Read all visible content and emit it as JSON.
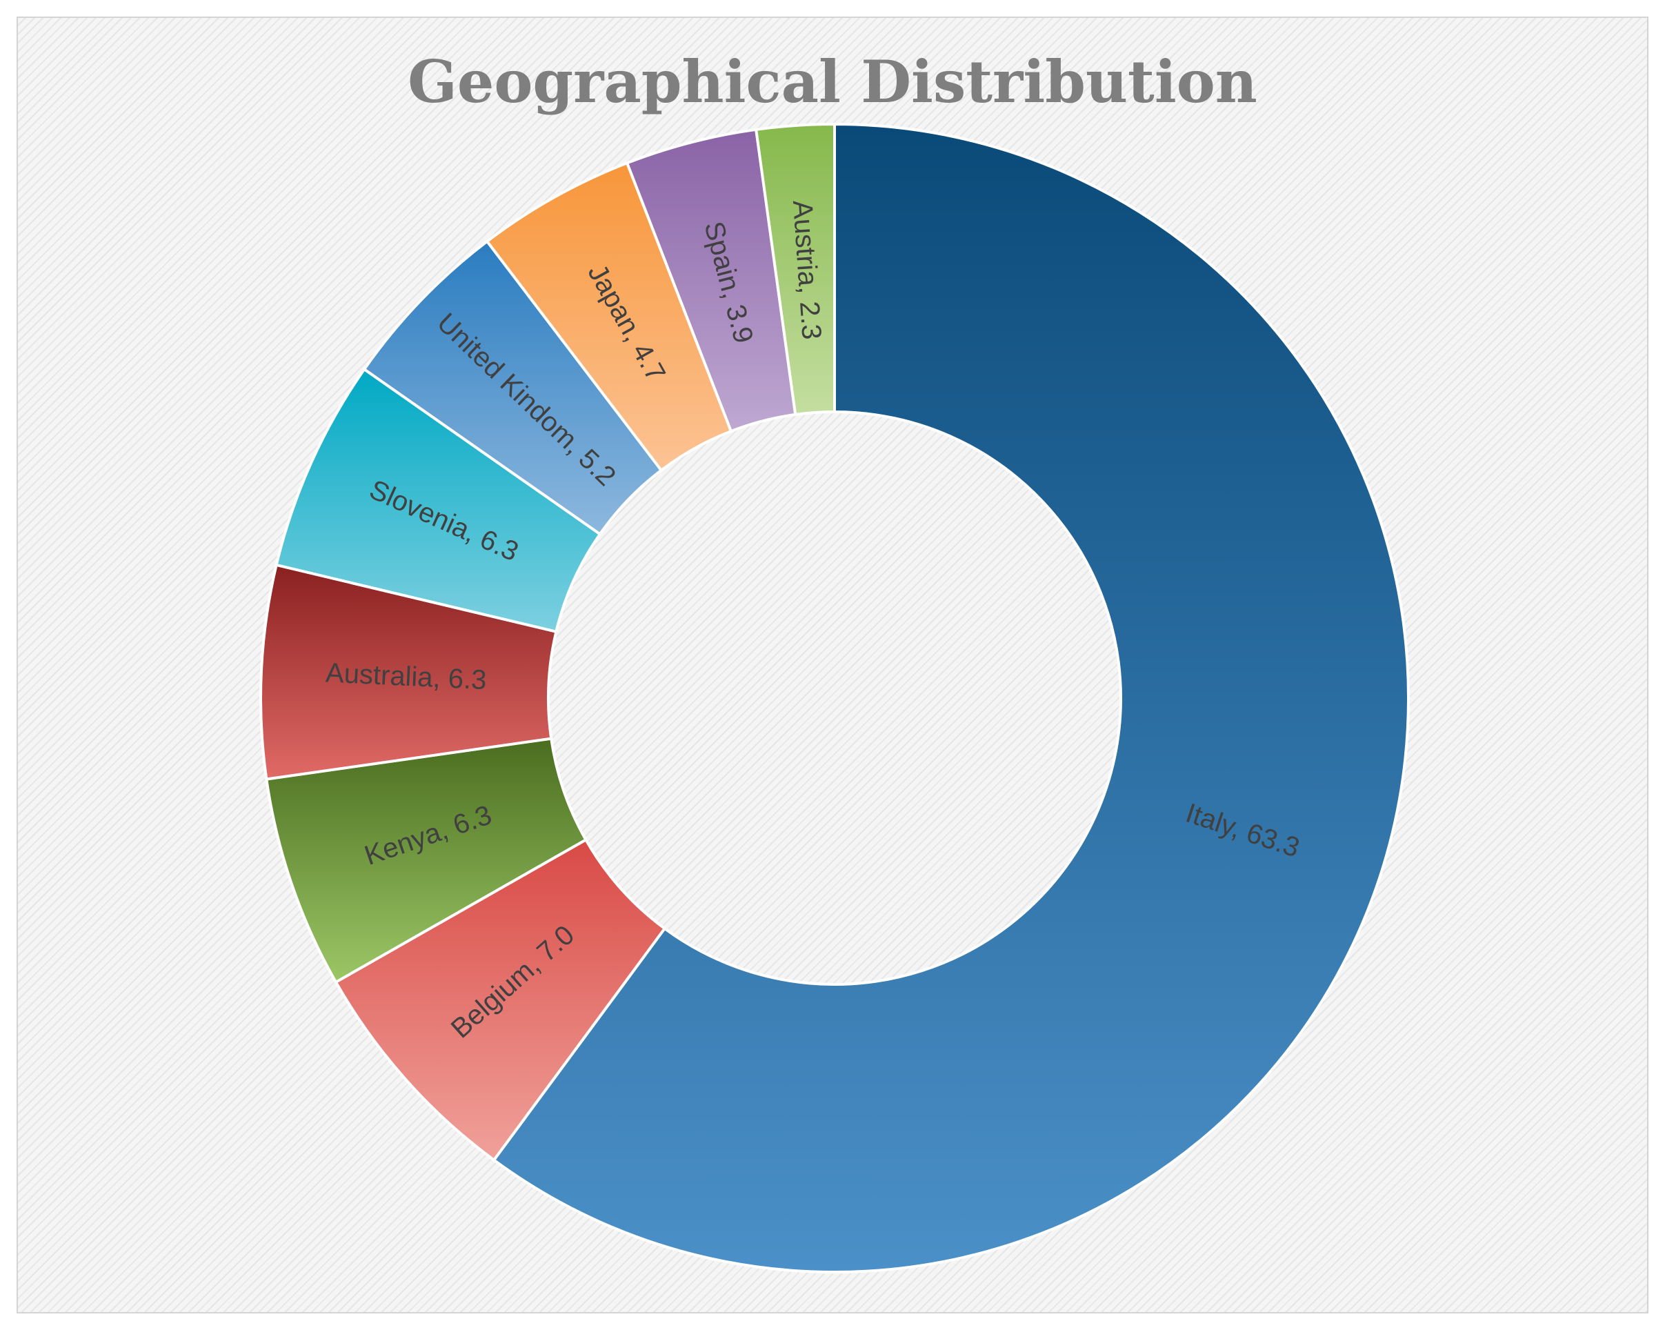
{
  "chart_data": {
    "type": "pie",
    "variant": "doughnut",
    "title": "Geographical Distribution",
    "start": "12 o'clock, clockwise",
    "data_labels": "category, value",
    "legend": "none",
    "slices": [
      {
        "label": "Italy",
        "value": 63.3,
        "value_text": "63.3",
        "color_top": "#0a4a79",
        "color_bottom": "#4b90c8"
      },
      {
        "label": "Belgium",
        "value": 7.0,
        "value_text": "7.0",
        "color_top": "#d94a46",
        "color_bottom": "#f0a19a"
      },
      {
        "label": "Kenya",
        "value": 6.3,
        "value_text": "6.3",
        "color_top": "#4a6d1f",
        "color_bottom": "#9cc766"
      },
      {
        "label": "Australia",
        "value": 6.3,
        "value_text": "6.3",
        "color_top": "#8a2020",
        "color_bottom": "#e06a66"
      },
      {
        "label": "Slovenia",
        "value": 6.3,
        "value_text": "6.3",
        "color_top": "#00a9c4",
        "color_bottom": "#7dd0e0"
      },
      {
        "label": "United Kindom",
        "value": 5.2,
        "value_text": "5.2",
        "color_top": "#2a7cc0",
        "color_bottom": "#8db8de"
      },
      {
        "label": "Japan",
        "value": 4.7,
        "value_text": "4.7",
        "color_top": "#f7963a",
        "color_bottom": "#fcc394"
      },
      {
        "label": "Spain",
        "value": 3.9,
        "value_text": "3.9",
        "color_top": "#8a63a6",
        "color_bottom": "#bea8d2"
      },
      {
        "label": "Austria",
        "value": 2.3,
        "value_text": "2.3",
        "color_top": "#86b84c",
        "color_bottom": "#c4dea0"
      }
    ]
  }
}
